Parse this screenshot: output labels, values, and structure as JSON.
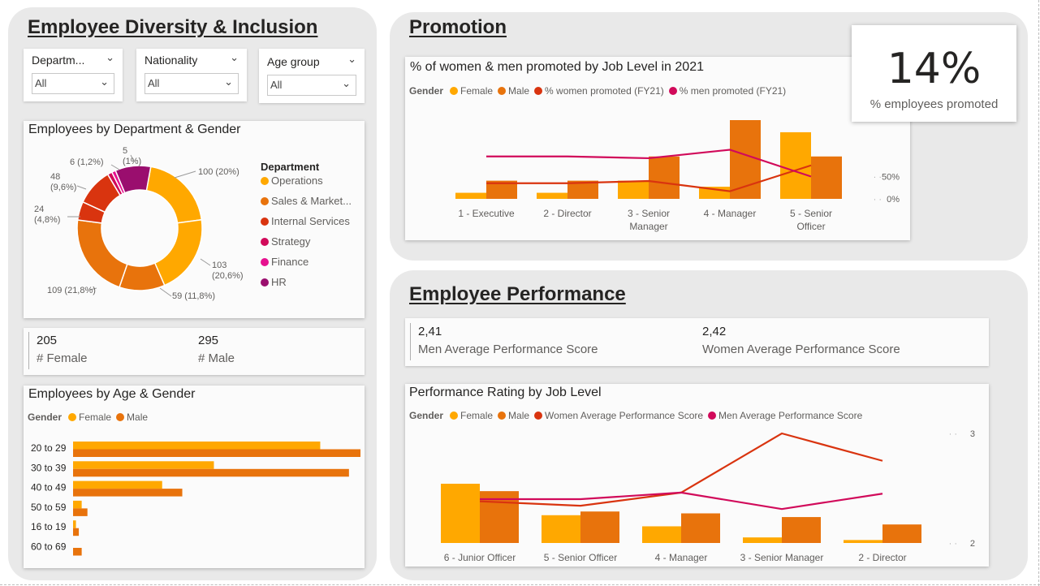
{
  "colors": {
    "female": "#FFA800",
    "male": "#E8730C",
    "internal_services": "#D9340F",
    "strategy": "#D10A5A",
    "finance": "#E6118F",
    "hr": "#9A0E6E",
    "women_line": "#D9340F",
    "men_line": "#D10A5A"
  },
  "left_panel": {
    "heading": "Employee Diversity & Inclusion",
    "slicers": [
      {
        "label": "Departm...",
        "value": "All"
      },
      {
        "label": "Nationality",
        "value": "All"
      },
      {
        "label": "Age group",
        "value": "All"
      }
    ],
    "donut_title": "Employees by Department & Gender",
    "donut_legend_title": "Department",
    "gender_kpis": [
      {
        "value": "205",
        "label": "# Female"
      },
      {
        "value": "295",
        "label": "# Male"
      }
    ],
    "age_chart_title": "Employees by Age & Gender"
  },
  "promotion": {
    "heading": "Promotion",
    "chart_title": "% of women & men promoted by Job Level in 2021",
    "kpi_value": "14%",
    "kpi_label": "% employees promoted"
  },
  "performance": {
    "heading": "Employee Performance",
    "kpis": [
      {
        "value": "2,41",
        "label": "Men Average Performance Score"
      },
      {
        "value": "2,42",
        "label": "Women Average Performance Score"
      }
    ],
    "chart_title": "Performance Rating by Job Level"
  },
  "chart_data": [
    {
      "id": "dept_donut",
      "type": "pie",
      "title": "Employees by Department & Gender",
      "legend_title": "Department",
      "categories": [
        "Operations",
        "Sales & Market...",
        "Internal Services",
        "Strategy",
        "Finance",
        "HR"
      ],
      "slices": [
        {
          "department": "Operations",
          "gender": "Female",
          "value": 100,
          "label": "100 (20%)"
        },
        {
          "department": "Operations",
          "gender": "Male",
          "value": 103,
          "label": "103 (20,6%)"
        },
        {
          "department": "Sales & Market...",
          "gender": "Female",
          "value": 59,
          "label": "59 (11,8%)"
        },
        {
          "department": "Sales & Market...",
          "gender": "Male",
          "value": 109,
          "label": "109 (21,8%)"
        },
        {
          "department": "Internal Services",
          "gender": "Female",
          "value": 24,
          "label": "24 (4,8%)"
        },
        {
          "department": "Internal Services",
          "gender": "Male",
          "value": 48,
          "label": "48 (9,6%)"
        },
        {
          "department": "Strategy",
          "gender": "Female",
          "value": 6,
          "label": "6 (1,2%)"
        },
        {
          "department": "Finance",
          "gender": "Female",
          "value": 5,
          "label": "5 (1%)"
        },
        {
          "department": "HR",
          "gender": "Female",
          "value": 46,
          "label": ""
        }
      ]
    },
    {
      "id": "age_bars",
      "type": "bar",
      "orientation": "horizontal",
      "title": "Employees by Age & Gender",
      "legend_title": "Gender",
      "categories": [
        "20 to 29",
        "30 to 39",
        "40 to 49",
        "50 to 59",
        "16 to 19",
        "60 to 69"
      ],
      "series": [
        {
          "name": "Female",
          "values": [
            86,
            49,
            31,
            3,
            1,
            0
          ]
        },
        {
          "name": "Male",
          "values": [
            100,
            96,
            38,
            5,
            2,
            3
          ]
        }
      ]
    },
    {
      "id": "promotion_combo",
      "type": "bar",
      "title": "% of women & men promoted by Job Level in 2021",
      "legend_title": "Gender",
      "categories": [
        "1 - Executive",
        "2 - Director",
        "3 - Senior Manager",
        "4 - Manager",
        "5 - Senior Officer"
      ],
      "series": [
        {
          "name": "Female",
          "type": "bar",
          "values": [
            2,
            2,
            6,
            4,
            22
          ]
        },
        {
          "name": "Male",
          "type": "bar",
          "values": [
            6,
            6,
            14,
            26,
            14
          ]
        },
        {
          "name": "% women promoted (FY21)",
          "type": "line",
          "axis": "right",
          "values": [
            35,
            35,
            40,
            17,
            75
          ]
        },
        {
          "name": "% men promoted (FY21)",
          "type": "line",
          "axis": "right",
          "values": [
            95,
            95,
            91,
            110,
            50
          ]
        }
      ],
      "y2_ticks": [
        "0%",
        "50%"
      ],
      "y2lim": [
        0,
        120
      ]
    },
    {
      "id": "performance_combo",
      "type": "bar",
      "title": "Performance Rating by Job Level",
      "legend_title": "Gender",
      "categories": [
        "6 - Junior Officer",
        "5 - Senior Officer",
        "4 - Manager",
        "3 - Senior Manager",
        "2 - Director"
      ],
      "series": [
        {
          "name": "Female",
          "type": "bar",
          "values": [
            16,
            7.5,
            4.5,
            1.5,
            0.8
          ]
        },
        {
          "name": "Male",
          "type": "bar",
          "values": [
            14,
            8.5,
            8,
            7,
            5
          ]
        },
        {
          "name": "Women Average Performance Score",
          "type": "line",
          "axis": "right",
          "values": [
            2.38,
            2.34,
            2.46,
            3.0,
            2.75
          ]
        },
        {
          "name": "Men Average Performance Score",
          "type": "line",
          "axis": "right",
          "values": [
            2.4,
            2.4,
            2.46,
            2.31,
            2.45
          ]
        }
      ],
      "y2_ticks": [
        "2",
        "3"
      ],
      "y2lim": [
        2,
        3
      ]
    }
  ]
}
